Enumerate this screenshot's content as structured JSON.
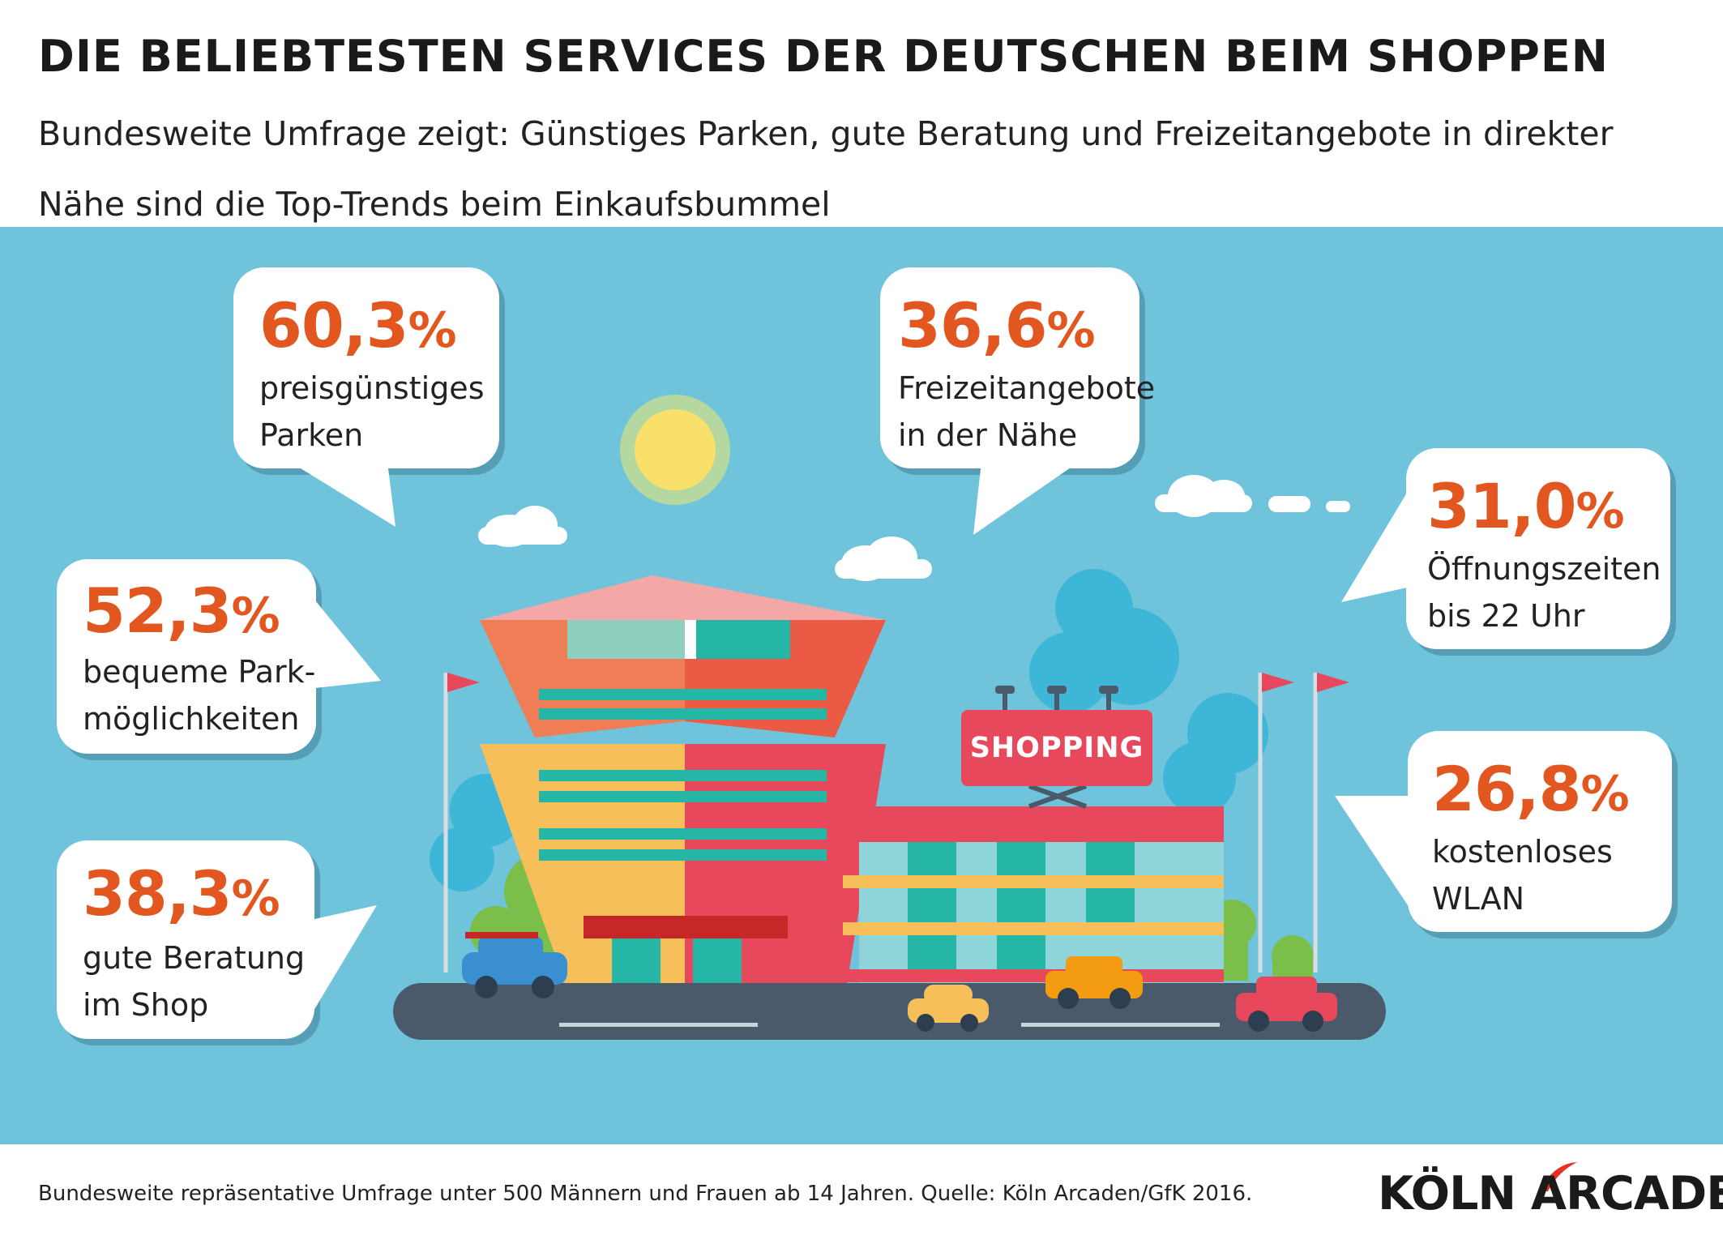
{
  "header": {
    "title": "DIE BELIEBTESTEN SERVICES DER DEUTSCHEN BEIM SHOPPEN",
    "subtitle": "Bundesweite Umfrage zeigt: Günstiges Parken, gute Beratung und Freizeitangebote in direkter Nähe sind die Top-Trends beim Einkaufsbummel"
  },
  "bubbles": [
    {
      "value": "60,3",
      "unit": "%",
      "line1": "preisgünstiges",
      "line2": "Parken"
    },
    {
      "value": "36,6",
      "unit": "%",
      "line1": "Freizeitangebote",
      "line2": "in der Nähe"
    },
    {
      "value": "31,0",
      "unit": "%",
      "line1": "Öffnungszeiten",
      "line2": "bis 22 Uhr"
    },
    {
      "value": "52,3",
      "unit": "%",
      "line1": "bequeme Park-",
      "line2": "möglichkeiten"
    },
    {
      "value": "26,8",
      "unit": "%",
      "line1": "kostenloses",
      "line2": "WLAN"
    },
    {
      "value": "38,3",
      "unit": "%",
      "line1": "gute Beratung",
      "line2": "im Shop"
    }
  ],
  "illustration": {
    "sign_text": "SHOPPING"
  },
  "footer": {
    "note": "Bundesweite repräsentative Umfrage unter 500 Männern und Frauen ab 14 Jahren. Quelle: Köln Arcaden/GfK 2016.",
    "logo": "KÖLN ARCADEN"
  },
  "colors": {
    "sky": "#6fc4dc",
    "accent_orange": "#e2571f",
    "bubble_bg": "#ffffff",
    "road": "#4a5a6a",
    "building_red": "#e8485c",
    "building_orange": "#ef7d55",
    "building_yellow": "#f6bf5a",
    "teal": "#26b6a6",
    "sun": "#f9e06b"
  }
}
